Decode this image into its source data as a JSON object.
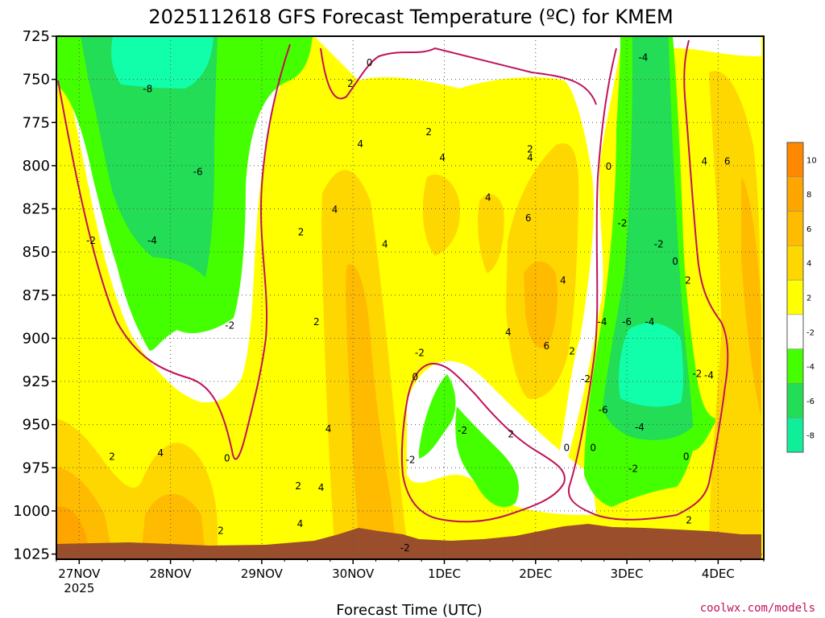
{
  "chart_data": {
    "type": "heatmap",
    "title": "2025112618 GFS Forecast Temperature (ºC) for KMEM",
    "xlabel": "Forecast Time (UTC)",
    "credit": "coolwx.com/models",
    "y_axis": {
      "reversed": true,
      "ticks": [
        "725",
        "750",
        "775",
        "800",
        "825",
        "850",
        "875",
        "900",
        "925",
        "950",
        "975",
        "1000",
        "1025"
      ],
      "range": [
        725,
        1028
      ]
    },
    "x_axis": {
      "ticks": [
        {
          "label": "27NOV",
          "sub": "2025",
          "t": 0.25
        },
        {
          "label": "28NOV",
          "sub": "",
          "t": 1.25
        },
        {
          "label": "29NOV",
          "sub": "",
          "t": 2.25
        },
        {
          "label": "30NOV",
          "sub": "",
          "t": 3.25
        },
        {
          "label": "1DEC",
          "sub": "",
          "t": 4.25
        },
        {
          "label": "2DEC",
          "sub": "",
          "t": 5.25
        },
        {
          "label": "3DEC",
          "sub": "",
          "t": 6.25
        },
        {
          "label": "4DEC",
          "sub": "",
          "t": 7.25
        }
      ],
      "range": [
        0.0,
        7.75
      ]
    },
    "colorbar": [
      {
        "label": "10",
        "color": "#ff8800"
      },
      {
        "label": "8",
        "color": "#ffa500"
      },
      {
        "label": "6",
        "color": "#ffbb00"
      },
      {
        "label": "4",
        "color": "#ffd700"
      },
      {
        "label": "2",
        "color": "#ffff00"
      },
      {
        "label": "-2",
        "color": "#ffffff"
      },
      {
        "label": "-4",
        "color": "#44ff00"
      },
      {
        "label": "-6",
        "color": "#22dd55"
      },
      {
        "label": "-8",
        "color": "#11ee99"
      }
    ],
    "colors": {
      "cold_core": "#11ffaa",
      "zero_line": "#c0125a",
      "terrain": "#9a4e2c"
    },
    "contour_labels": [
      {
        "text": "0",
        "t": 3.43,
        "p": 740
      },
      {
        "text": "2",
        "t": 3.22,
        "p": 752
      },
      {
        "text": "-8",
        "t": 1.0,
        "p": 755
      },
      {
        "text": "-4",
        "t": 6.43,
        "p": 737
      },
      {
        "text": "2",
        "t": 4.08,
        "p": 780
      },
      {
        "text": "2",
        "t": 5.19,
        "p": 790
      },
      {
        "text": "4",
        "t": 3.33,
        "p": 787
      },
      {
        "text": "-6",
        "t": 1.55,
        "p": 803
      },
      {
        "text": "4",
        "t": 4.23,
        "p": 795
      },
      {
        "text": "4",
        "t": 5.19,
        "p": 795
      },
      {
        "text": "0",
        "t": 6.05,
        "p": 800
      },
      {
        "text": "4",
        "t": 7.1,
        "p": 797
      },
      {
        "text": "6",
        "t": 7.35,
        "p": 797
      },
      {
        "text": "4",
        "t": 4.73,
        "p": 818
      },
      {
        "text": "-2",
        "t": 6.2,
        "p": 833
      },
      {
        "text": "4",
        "t": 3.05,
        "p": 825
      },
      {
        "text": "6",
        "t": 5.17,
        "p": 830
      },
      {
        "text": "-2",
        "t": 0.38,
        "p": 843
      },
      {
        "text": "-4",
        "t": 1.05,
        "p": 843
      },
      {
        "text": "2",
        "t": 2.68,
        "p": 838
      },
      {
        "text": "4",
        "t": 3.6,
        "p": 845
      },
      {
        "text": "-2",
        "t": 6.6,
        "p": 845
      },
      {
        "text": "0",
        "t": 6.78,
        "p": 855
      },
      {
        "text": "4",
        "t": 5.55,
        "p": 866
      },
      {
        "text": "2",
        "t": 6.92,
        "p": 866
      },
      {
        "text": "2",
        "t": 2.85,
        "p": 890
      },
      {
        "text": "-2",
        "t": 1.9,
        "p": 892
      },
      {
        "text": "-4",
        "t": 5.98,
        "p": 890
      },
      {
        "text": "-6",
        "t": 6.25,
        "p": 890
      },
      {
        "text": "-4",
        "t": 6.5,
        "p": 890
      },
      {
        "text": "4",
        "t": 4.95,
        "p": 896
      },
      {
        "text": "6",
        "t": 5.37,
        "p": 904
      },
      {
        "text": "-2",
        "t": 3.98,
        "p": 908
      },
      {
        "text": "2",
        "t": 5.65,
        "p": 907
      },
      {
        "text": "-2",
        "t": 7.02,
        "p": 920
      },
      {
        "text": "-4",
        "t": 7.15,
        "p": 921
      },
      {
        "text": "0",
        "t": 3.93,
        "p": 922
      },
      {
        "text": "-2",
        "t": 5.8,
        "p": 923
      },
      {
        "text": "-6",
        "t": 5.99,
        "p": 941
      },
      {
        "text": "2",
        "t": 4.98,
        "p": 955
      },
      {
        "text": "4",
        "t": 2.98,
        "p": 952
      },
      {
        "text": "-2",
        "t": 4.45,
        "p": 953
      },
      {
        "text": "-4",
        "t": 6.39,
        "p": 951
      },
      {
        "text": "0",
        "t": 5.59,
        "p": 963
      },
      {
        "text": "0",
        "t": 5.88,
        "p": 963
      },
      {
        "text": "2",
        "t": 0.61,
        "p": 968
      },
      {
        "text": "4",
        "t": 1.14,
        "p": 966
      },
      {
        "text": "0",
        "t": 1.87,
        "p": 969
      },
      {
        "text": "-2",
        "t": 3.88,
        "p": 970
      },
      {
        "text": "0",
        "t": 6.9,
        "p": 968
      },
      {
        "text": "2",
        "t": 2.65,
        "p": 985
      },
      {
        "text": "-2",
        "t": 6.32,
        "p": 975
      },
      {
        "text": "4",
        "t": 2.9,
        "p": 986
      },
      {
        "text": "2",
        "t": 6.93,
        "p": 1005
      },
      {
        "text": "4",
        "t": 2.67,
        "p": 1007
      },
      {
        "text": "2",
        "t": 1.8,
        "p": 1011
      },
      {
        "text": "-2",
        "t": 3.82,
        "p": 1021
      }
    ]
  }
}
